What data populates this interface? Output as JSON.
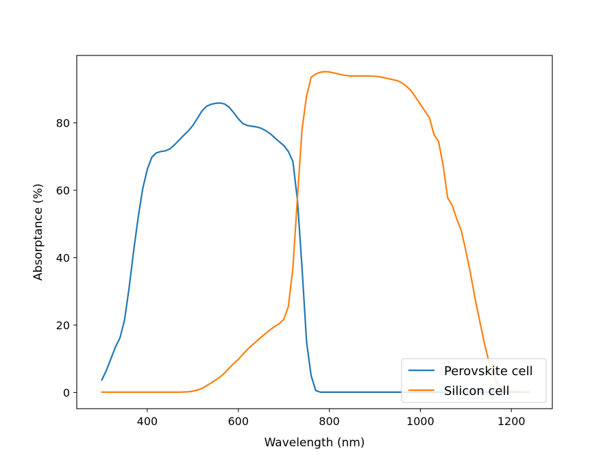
{
  "chart_data": {
    "type": "line",
    "title": "",
    "xlabel": "Wavelength (nm)",
    "ylabel": "Absorptance (%)",
    "xlim": [
      245,
      1290
    ],
    "ylim": [
      -4.8,
      100
    ],
    "xticks": [
      400,
      600,
      800,
      1000,
      1200
    ],
    "yticks": [
      0,
      20,
      40,
      60,
      80
    ],
    "grid": false,
    "legend_position": "lower-right",
    "series": [
      {
        "name": "Perovskite cell",
        "color": "#1f77b4",
        "points": [
          [
            300,
            3.7
          ],
          [
            310,
            6.5
          ],
          [
            320,
            10
          ],
          [
            330,
            13.5
          ],
          [
            340,
            16.2
          ],
          [
            350,
            21.5
          ],
          [
            360,
            31
          ],
          [
            370,
            42
          ],
          [
            380,
            52
          ],
          [
            390,
            60.5
          ],
          [
            400,
            66.2
          ],
          [
            410,
            69.8
          ],
          [
            420,
            71.1
          ],
          [
            430,
            71.5
          ],
          [
            440,
            71.7
          ],
          [
            450,
            72.3
          ],
          [
            460,
            73.5
          ],
          [
            470,
            74.9
          ],
          [
            480,
            76.3
          ],
          [
            490,
            77.6
          ],
          [
            500,
            79.2
          ],
          [
            510,
            81.3
          ],
          [
            520,
            83.5
          ],
          [
            530,
            84.9
          ],
          [
            540,
            85.5
          ],
          [
            550,
            85.8
          ],
          [
            560,
            85.9
          ],
          [
            570,
            85.6
          ],
          [
            580,
            84.6
          ],
          [
            590,
            83.0
          ],
          [
            600,
            81.2
          ],
          [
            610,
            79.8
          ],
          [
            620,
            79.2
          ],
          [
            630,
            79.0
          ],
          [
            640,
            78.8
          ],
          [
            650,
            78.4
          ],
          [
            660,
            77.7
          ],
          [
            670,
            76.8
          ],
          [
            680,
            75.6
          ],
          [
            690,
            74.4
          ],
          [
            700,
            73.3
          ],
          [
            710,
            71.5
          ],
          [
            720,
            68.5
          ],
          [
            730,
            57
          ],
          [
            740,
            37
          ],
          [
            750,
            15
          ],
          [
            760,
            5
          ],
          [
            770,
            0.6
          ],
          [
            780,
            0.1
          ],
          [
            800,
            0.1
          ],
          [
            900,
            0.1
          ],
          [
            1000,
            0.1
          ],
          [
            1100,
            0.1
          ],
          [
            1200,
            0.1
          ],
          [
            1240,
            0.1
          ]
        ]
      },
      {
        "name": "Silicon cell",
        "color": "#ff7f0e",
        "points": [
          [
            300,
            0.1
          ],
          [
            400,
            0.1
          ],
          [
            470,
            0.1
          ],
          [
            490,
            0.2
          ],
          [
            500,
            0.4
          ],
          [
            510,
            0.7
          ],
          [
            520,
            1.2
          ],
          [
            530,
            2.0
          ],
          [
            540,
            2.8
          ],
          [
            550,
            3.7
          ],
          [
            560,
            4.6
          ],
          [
            570,
            5.8
          ],
          [
            580,
            7.2
          ],
          [
            590,
            8.6
          ],
          [
            600,
            9.8
          ],
          [
            610,
            11.3
          ],
          [
            620,
            12.8
          ],
          [
            630,
            14.0
          ],
          [
            640,
            15.2
          ],
          [
            650,
            16.4
          ],
          [
            660,
            17.5
          ],
          [
            670,
            18.6
          ],
          [
            680,
            19.6
          ],
          [
            690,
            20.4
          ],
          [
            700,
            21.7
          ],
          [
            710,
            25.5
          ],
          [
            720,
            37
          ],
          [
            730,
            58
          ],
          [
            740,
            78
          ],
          [
            750,
            88
          ],
          [
            760,
            93.5
          ],
          [
            770,
            94.5
          ],
          [
            780,
            95.0
          ],
          [
            790,
            95.2
          ],
          [
            800,
            95.1
          ],
          [
            810,
            94.8
          ],
          [
            820,
            94.5
          ],
          [
            830,
            94.2
          ],
          [
            840,
            94.0
          ],
          [
            850,
            93.9
          ],
          [
            860,
            93.9
          ],
          [
            870,
            93.9
          ],
          [
            880,
            93.9
          ],
          [
            890,
            93.9
          ],
          [
            900,
            93.8
          ],
          [
            910,
            93.7
          ],
          [
            920,
            93.4
          ],
          [
            930,
            93.1
          ],
          [
            940,
            92.8
          ],
          [
            950,
            92.5
          ],
          [
            960,
            91.8
          ],
          [
            970,
            90.8
          ],
          [
            980,
            89.5
          ],
          [
            990,
            87.5
          ],
          [
            1000,
            85.5
          ],
          [
            1010,
            83.5
          ],
          [
            1020,
            81.5
          ],
          [
            1030,
            76.5
          ],
          [
            1040,
            74.5
          ],
          [
            1050,
            67.5
          ],
          [
            1060,
            57.8
          ],
          [
            1070,
            55.5
          ],
          [
            1080,
            51.5
          ],
          [
            1090,
            48
          ],
          [
            1100,
            42
          ],
          [
            1110,
            35.5
          ],
          [
            1120,
            28
          ],
          [
            1130,
            21.5
          ],
          [
            1140,
            15
          ],
          [
            1150,
            9.5
          ],
          [
            1160,
            5.5
          ],
          [
            1170,
            2.5
          ],
          [
            1180,
            1.0
          ],
          [
            1190,
            0.5
          ],
          [
            1200,
            0.3
          ],
          [
            1240,
            0.2
          ]
        ]
      }
    ]
  }
}
